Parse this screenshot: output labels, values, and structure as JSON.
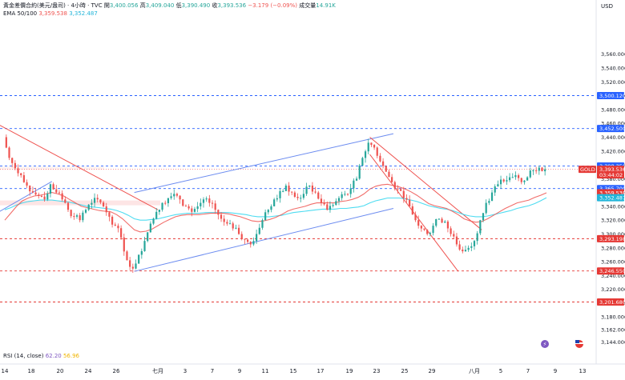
{
  "header": {
    "symbol_title": "黃金差價合約(美元/盎司) · 4小時 · TVC",
    "open_label": "開",
    "open_value": "3,400.056",
    "high_label": "高",
    "high_value": "3,409.040",
    "low_label": "低",
    "low_value": "3,390.490",
    "close_label": "收",
    "close_value": "3,393.536",
    "change": "−3.179 (−0.09%)",
    "volume_label": "成交量",
    "volume_value": "14.91K",
    "ema_label": "EMA 50/100",
    "ema50_value": "3,359.538",
    "ema100_value": "3,352.487"
  },
  "rsi": {
    "label": "RSI (14, close)",
    "value1": "62.20",
    "value2": "56.96"
  },
  "colors": {
    "up": "#26a69a",
    "down": "#ef5350",
    "ema50": "#ef5350",
    "ema100": "#22d3ee",
    "channel": "#6c8cf0",
    "downtrend": "#ef5350",
    "level_blue": "#2962ff",
    "level_red": "#e53935"
  },
  "chart_data": {
    "type": "candlestick",
    "price_axis_unit": "USD",
    "y_ticks": [
      3144,
      3162,
      3180,
      3200,
      3220,
      3240,
      3260,
      3280,
      3300,
      3320,
      3340,
      3360,
      3380,
      3400,
      3420,
      3440,
      3460,
      3480,
      3500,
      3520,
      3540,
      3560
    ],
    "y_tick_labels": [
      "3,144.000",
      "3,162.000",
      "3,180.000",
      "3,200.000",
      "3,220.000",
      "3,240.000",
      "3,260.000",
      "3,280.000",
      "3,300.000",
      "3,320.000",
      "3,340.000",
      "3,360.000",
      "3,380.000",
      "3,400.000",
      "3,420.000",
      "3,440.000",
      "3,460.000",
      "3,480.000",
      "3,500.000",
      "3,520.000",
      "3,540.000",
      "3,560.000"
    ],
    "x_tick_labels": [
      "14",
      "18",
      "20",
      "24",
      "26",
      "七月",
      "3",
      "7",
      "9",
      "11",
      "15",
      "17",
      "19",
      "23",
      "25",
      "29",
      "八月",
      "5",
      "7",
      "9",
      "13"
    ],
    "price_labels": [
      {
        "value": 3500.12,
        "text": "3,500.120",
        "kind": "blue"
      },
      {
        "value": 3452.5,
        "text": "3,452.500",
        "kind": "blue"
      },
      {
        "value": 3398.35,
        "text": "3,398.350",
        "kind": "blue"
      },
      {
        "value": 3393.536,
        "text": "3,393.536",
        "kind": "red",
        "tag": "GOLD",
        "timer": "03:44:02"
      },
      {
        "value": 3365.7,
        "text": "3,365.700",
        "kind": "blue"
      },
      {
        "value": 3359.538,
        "text": "3,359.538",
        "kind": "red"
      },
      {
        "value": 3352.487,
        "text": "3,352.487",
        "kind": "cyan"
      },
      {
        "value": 3293.198,
        "text": "3,293.198",
        "kind": "red"
      },
      {
        "value": 3246.55,
        "text": "3,246.550",
        "kind": "red"
      },
      {
        "value": 3201.68,
        "text": "3,201.680",
        "kind": "red"
      }
    ],
    "horizontal_levels": [
      {
        "value": 3500.12,
        "style": "blue-dashed"
      },
      {
        "value": 3452.5,
        "style": "blue-dashed"
      },
      {
        "value": 3398.35,
        "style": "blue-dashed"
      },
      {
        "value": 3365.7,
        "style": "blue-dashed"
      },
      {
        "value": 3293.198,
        "style": "red-dashed"
      },
      {
        "value": 3246.55,
        "style": "red-dashed"
      },
      {
        "value": 3201.68,
        "style": "red-dashed"
      }
    ],
    "close_path": [
      3440,
      3410,
      3395,
      3385,
      3370,
      3360,
      3355,
      3350,
      3372,
      3360,
      3350,
      3335,
      3325,
      3320,
      3335,
      3345,
      3350,
      3340,
      3325,
      3312,
      3295,
      3262,
      3250,
      3270,
      3290,
      3315,
      3332,
      3345,
      3352,
      3358,
      3350,
      3340,
      3332,
      3340,
      3350,
      3345,
      3335,
      3322,
      3315,
      3308,
      3300,
      3292,
      3285,
      3300,
      3320,
      3335,
      3350,
      3362,
      3370,
      3360,
      3352,
      3358,
      3370,
      3360,
      3345,
      3335,
      3342,
      3352,
      3358,
      3366,
      3380,
      3410,
      3432,
      3425,
      3405,
      3390,
      3375,
      3365,
      3352,
      3340,
      3320,
      3308,
      3300,
      3312,
      3322,
      3318,
      3300,
      3285,
      3275,
      3280,
      3290,
      3320,
      3345,
      3360,
      3372,
      3376,
      3382,
      3385,
      3375,
      3382,
      3392,
      3396,
      3393.536
    ],
    "ema50_path": [
      3320,
      3330,
      3340,
      3348,
      3352,
      3355,
      3356,
      3358,
      3360,
      3358,
      3355,
      3350,
      3345,
      3340,
      3338,
      3336,
      3334,
      3333,
      3332,
      3328,
      3322,
      3314,
      3306,
      3303,
      3304,
      3307,
      3312,
      3317,
      3321,
      3325,
      3327,
      3328,
      3328,
      3328,
      3329,
      3330,
      3330,
      3330,
      3329,
      3327,
      3325,
      3322,
      3319,
      3318,
      3319,
      3321,
      3324,
      3328,
      3333,
      3336,
      3338,
      3340,
      3343,
      3345,
      3345,
      3345,
      3345,
      3347,
      3348,
      3350,
      3353,
      3358,
      3365,
      3369,
      3371,
      3372,
      3370,
      3368,
      3365,
      3361,
      3356,
      3350,
      3344,
      3341,
      3339,
      3337,
      3333,
      3328,
      3322,
      3319,
      3317,
      3318,
      3322,
      3327,
      3332,
      3337,
      3341,
      3345,
      3347,
      3349,
      3353,
      3356,
      3359.538
    ],
    "ema100_path": [
      3335,
      3338,
      3342,
      3345,
      3347,
      3348,
      3349,
      3349,
      3349,
      3348,
      3347,
      3346,
      3344,
      3342,
      3340,
      3339,
      3338,
      3337,
      3336,
      3334,
      3331,
      3327,
      3322,
      3320,
      3320,
      3321,
      3322,
      3324,
      3326,
      3328,
      3329,
      3330,
      3330,
      3330,
      3331,
      3331,
      3331,
      3331,
      3331,
      3330,
      3329,
      3328,
      3326,
      3325,
      3325,
      3325,
      3326,
      3327,
      3329,
      3331,
      3332,
      3333,
      3334,
      3335,
      3336,
      3336,
      3336,
      3337,
      3337,
      3338,
      3339,
      3341,
      3345,
      3348,
      3350,
      3352,
      3352,
      3352,
      3351,
      3349,
      3347,
      3344,
      3341,
      3339,
      3337,
      3336,
      3334,
      3331,
      3328,
      3326,
      3325,
      3325,
      3326,
      3328,
      3330,
      3332,
      3334,
      3337,
      3339,
      3341,
      3344,
      3348,
      3352.487
    ],
    "trendlines": [
      {
        "name": "channel-upper",
        "color": "channel",
        "from": {
          "i": 22,
          "p": 3360
        },
        "to": {
          "i": 66,
          "p": 3445
        }
      },
      {
        "name": "channel-lower",
        "color": "channel",
        "from": {
          "i": 22,
          "p": 3246
        },
        "to": {
          "i": 66,
          "p": 3337
        }
      },
      {
        "name": "channel-left",
        "color": "channel",
        "from": {
          "i": -1,
          "p": 3332
        },
        "to": {
          "i": 8,
          "p": 3376
        }
      },
      {
        "name": "downtrend-left",
        "color": "downtrend",
        "from": {
          "i": -1,
          "p": 3458
        },
        "to": {
          "i": 26,
          "p": 3335
        }
      },
      {
        "name": "downtrend-mid",
        "color": "downtrend",
        "from": {
          "i": 62,
          "p": 3440
        },
        "to": {
          "i": 81,
          "p": 3306
        }
      },
      {
        "name": "downtrend-lower",
        "color": "downtrend",
        "from": {
          "i": 62,
          "p": 3415
        },
        "to": {
          "i": 77,
          "p": 3246
        }
      }
    ]
  }
}
